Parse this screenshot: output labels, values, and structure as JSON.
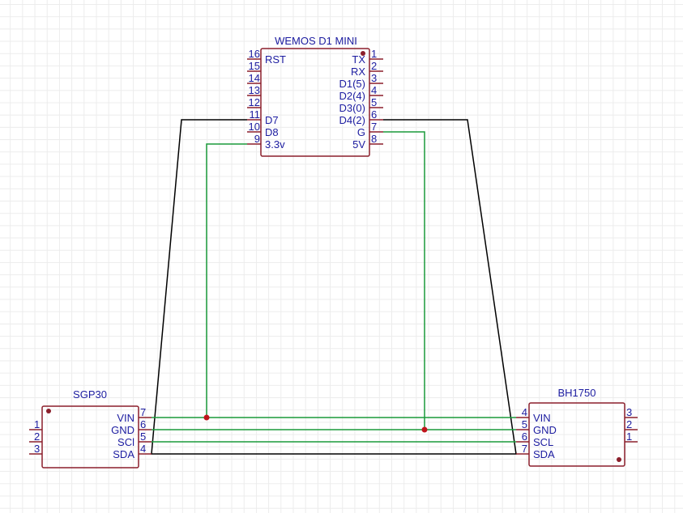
{
  "colors": {
    "component": "#8b1f2b",
    "text": "#1c1ca0",
    "wire_signal": "#000000",
    "wire_power": "#1a9a3a",
    "junction": "#c0141c"
  },
  "wemos": {
    "title": "WEMOS  D1  MINI",
    "left_pins": [
      {
        "num": "16",
        "label": "RST"
      },
      {
        "num": "15",
        "label": ""
      },
      {
        "num": "14",
        "label": ""
      },
      {
        "num": "13",
        "label": ""
      },
      {
        "num": "12",
        "label": ""
      },
      {
        "num": "11",
        "label": "D7"
      },
      {
        "num": "10",
        "label": "D8"
      },
      {
        "num": "9",
        "label": "3.3v"
      }
    ],
    "right_pins": [
      {
        "num": "1",
        "label": "TX"
      },
      {
        "num": "2",
        "label": "RX"
      },
      {
        "num": "3",
        "label": "D1(5)"
      },
      {
        "num": "4",
        "label": "D2(4)"
      },
      {
        "num": "5",
        "label": "D3(0)"
      },
      {
        "num": "6",
        "label": "D4(2)"
      },
      {
        "num": "7",
        "label": "G"
      },
      {
        "num": "8",
        "label": "5V"
      }
    ]
  },
  "sgp30": {
    "title": "SGP30",
    "left_pins": [
      "1",
      "2",
      "3"
    ],
    "right_pins": [
      {
        "num": "7",
        "label": "VIN"
      },
      {
        "num": "6",
        "label": "GND"
      },
      {
        "num": "5",
        "label": "SCl"
      },
      {
        "num": "4",
        "label": "SDA"
      }
    ]
  },
  "bh1750": {
    "title": "BH1750",
    "left_pins": [
      {
        "num": "4",
        "label": "VIN"
      },
      {
        "num": "5",
        "label": "GND"
      },
      {
        "num": "6",
        "label": "SCL"
      },
      {
        "num": "7",
        "label": "SDA"
      }
    ],
    "right_pins": [
      "3",
      "2",
      "1"
    ]
  }
}
